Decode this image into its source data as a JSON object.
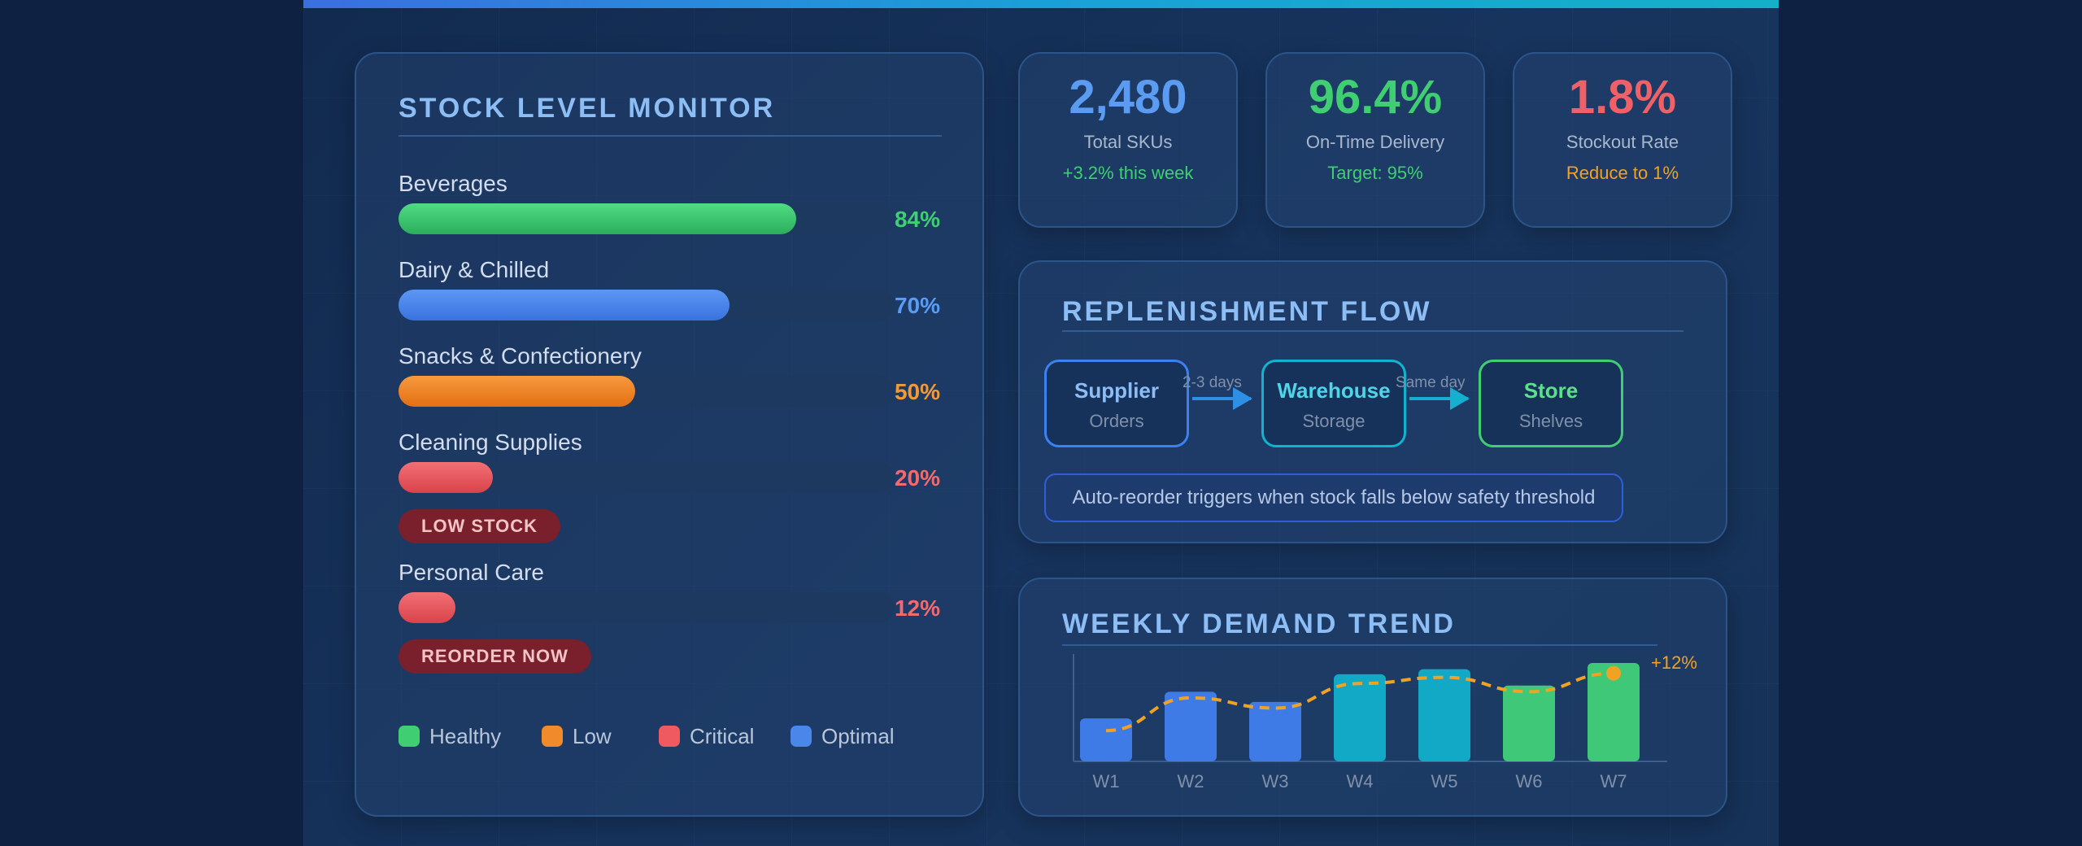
{
  "colors": {
    "healthy": "#3fcf72",
    "low": "#f08a2a",
    "critical": "#ee5a60",
    "optimal": "#4b86ea",
    "teal": "#12a9c6",
    "trend": "#f0a224"
  },
  "stock_monitor": {
    "title": "STOCK LEVEL MONITOR",
    "categories": [
      {
        "label": "Beverages",
        "percent": 84,
        "percent_label": "84%",
        "status": "healthy",
        "badge": null
      },
      {
        "label": "Dairy & Chilled",
        "percent": 70,
        "percent_label": "70%",
        "status": "optimal",
        "badge": null
      },
      {
        "label": "Snacks & Confectionery",
        "percent": 50,
        "percent_label": "50%",
        "status": "low",
        "badge": null
      },
      {
        "label": "Cleaning Supplies",
        "percent": 20,
        "percent_label": "20%",
        "status": "critical",
        "badge": "LOW STOCK"
      },
      {
        "label": "Personal Care",
        "percent": 12,
        "percent_label": "12%",
        "status": "critical",
        "badge": "REORDER NOW"
      }
    ],
    "legend": [
      {
        "label": "Healthy",
        "status": "healthy"
      },
      {
        "label": "Low",
        "status": "low"
      },
      {
        "label": "Critical",
        "status": "critical"
      },
      {
        "label": "Optimal",
        "status": "optimal"
      }
    ]
  },
  "kpis": {
    "skus": {
      "value": "2,480",
      "label": "Total SKUs",
      "note": "+3.2% this week",
      "value_color": "#5b9cf2",
      "note_color": "#3fcf72"
    },
    "delivery": {
      "value": "96.4%",
      "label": "On-Time Delivery",
      "note": "Target: 95%",
      "value_color": "#3fcf72",
      "note_color": "#3fcf72"
    },
    "stockout": {
      "value": "1.8%",
      "label": "Stockout Rate",
      "note": "Reduce to 1%",
      "value_color": "#ef6166",
      "note_color": "#f0a224"
    }
  },
  "flow": {
    "title": "REPLENISHMENT FLOW",
    "nodes": [
      {
        "title": "Supplier",
        "sub": "Orders",
        "color": "#3b82f0",
        "title_color": "#8dbdf5"
      },
      {
        "title": "Warehouse",
        "sub": "Storage",
        "color": "#12b3cf",
        "title_color": "#4fd5e8"
      },
      {
        "title": "Store",
        "sub": "Shelves",
        "color": "#3fcf72",
        "title_color": "#5de08c"
      }
    ],
    "edges": [
      "2-3 days",
      "Same day"
    ],
    "note": "Auto-reorder triggers when stock falls below safety threshold"
  },
  "demand": {
    "title": "WEEKLY DEMAND TREND",
    "change_label": "+12%"
  },
  "chart_data": {
    "type": "bar",
    "title": "WEEKLY DEMAND TREND",
    "categories": [
      "W1",
      "W2",
      "W3",
      "W4",
      "W5",
      "W6",
      "W7"
    ],
    "series": [
      {
        "name": "Demand",
        "values": [
          42,
          68,
          58,
          85,
          90,
          74,
          96
        ],
        "colors": [
          "#3f7be6",
          "#3f7be6",
          "#3f7be6",
          "#12a9c6",
          "#12a9c6",
          "#3fc877",
          "#3fc877"
        ]
      },
      {
        "name": "Trend",
        "type": "line",
        "style": "dashed",
        "values": [
          30,
          62,
          52,
          76,
          82,
          68,
          86
        ]
      }
    ],
    "annotation": "+12%",
    "ylim": [
      0,
      100
    ],
    "xlabel": "",
    "ylabel": ""
  }
}
